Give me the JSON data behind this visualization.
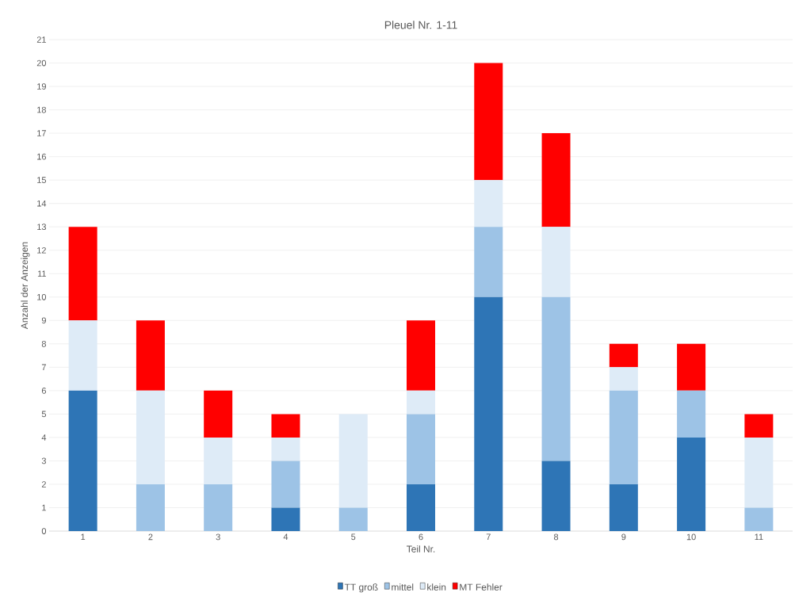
{
  "chart_data": {
    "type": "bar",
    "title": "Pleuel Nr. 1-11",
    "xlabel": "Teil Nr.",
    "ylabel": "Anzahl der Anzeigen",
    "categories": [
      "1",
      "2",
      "3",
      "4",
      "5",
      "6",
      "7",
      "8",
      "9",
      "10",
      "11"
    ],
    "stacked": true,
    "series": [
      {
        "name": "TT groß",
        "color": "#2e75b6",
        "values": [
          6,
          0,
          0,
          1,
          0,
          2,
          10,
          3,
          2,
          4,
          0
        ]
      },
      {
        "name": "mittel",
        "color": "#9dc3e6",
        "values": [
          0,
          2,
          2,
          2,
          1,
          3,
          3,
          7,
          4,
          2,
          1
        ]
      },
      {
        "name": "klein",
        "color": "#deebf7",
        "values": [
          3,
          4,
          2,
          1,
          4,
          1,
          2,
          3,
          1,
          0,
          3
        ]
      },
      {
        "name": "MT Fehler",
        "color": "#ff0000",
        "values": [
          4,
          3,
          2,
          1,
          0,
          3,
          5,
          4,
          1,
          2,
          1
        ]
      }
    ],
    "ylim": [
      0,
      21
    ],
    "yticks": [
      0,
      1,
      2,
      3,
      4,
      5,
      6,
      7,
      8,
      9,
      10,
      11,
      12,
      13,
      14,
      15,
      16,
      17,
      18,
      19,
      20,
      21
    ],
    "grid": "y",
    "legend": "bottom"
  }
}
